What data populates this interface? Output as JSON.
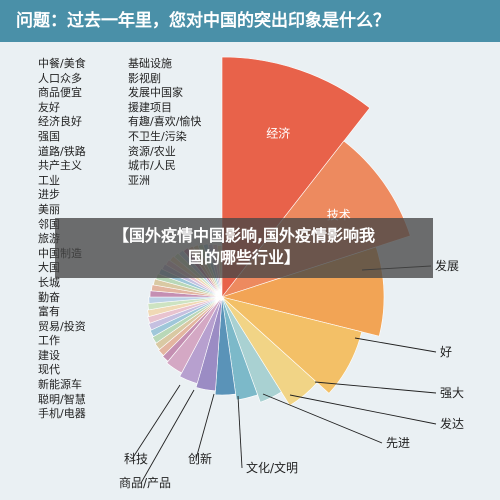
{
  "header": {
    "title": "问题：过去一年里，您对中国的突出印象是什么？"
  },
  "left_column_1": [
    "中餐/美食",
    "人口众多",
    "商品便宜",
    "友好",
    "经济良好",
    "强国",
    "道路/铁路",
    "共产主义",
    "工业",
    "进步",
    "美丽",
    "邻国",
    "旅游",
    "中国制造",
    "大国",
    "长城",
    "勤奋",
    "富有",
    "贸易/投资",
    "工作",
    "建设",
    "现代",
    "新能源车",
    "聪明/智慧",
    "手机/电器"
  ],
  "left_column_2": [
    "基础设施",
    "影视剧",
    "发展中国家",
    "援建项目",
    "有趣/喜欢/愉快",
    "不卫生/污染",
    "资源/农业",
    "城市/人民",
    "亚洲"
  ],
  "banner": {
    "line1": "【国外疫情中国影响,国外疫情影响我",
    "line2": "国的哪些行业】"
  },
  "chart_data": {
    "type": "pie",
    "title": "问题：过去一年里，您对中国的突出印象是什么？",
    "categories": [
      "经济",
      "技术",
      "发展",
      "好",
      "强大",
      "发达",
      "先进",
      "文化/文明",
      "创新",
      "商品/产品",
      "科技"
    ],
    "values": [
      160,
      148,
      130,
      110,
      95,
      88,
      80,
      75,
      70,
      66,
      62
    ],
    "colors": {
      "经济": "#e8624a",
      "技术": "#ed8a5f",
      "发展": "#f2a455",
      "好": "#f3c067",
      "强大": "#f1d486",
      "发达": "#a9d1d2",
      "先进": "#7cb9c9",
      "文化/文明": "#5a93b8",
      "创新": "#9b8cc4",
      "商品/产品": "#b7a0cf",
      "科技": "#d4a8c4"
    },
    "other_slice_colors": [
      "#c48fb2",
      "#e3b5a0",
      "#d9c9a3",
      "#b9d8b8",
      "#9fc7d9",
      "#c5c0e0",
      "#e8c3cf",
      "#f0d9b5",
      "#cde3c2",
      "#bcd1e6"
    ]
  }
}
